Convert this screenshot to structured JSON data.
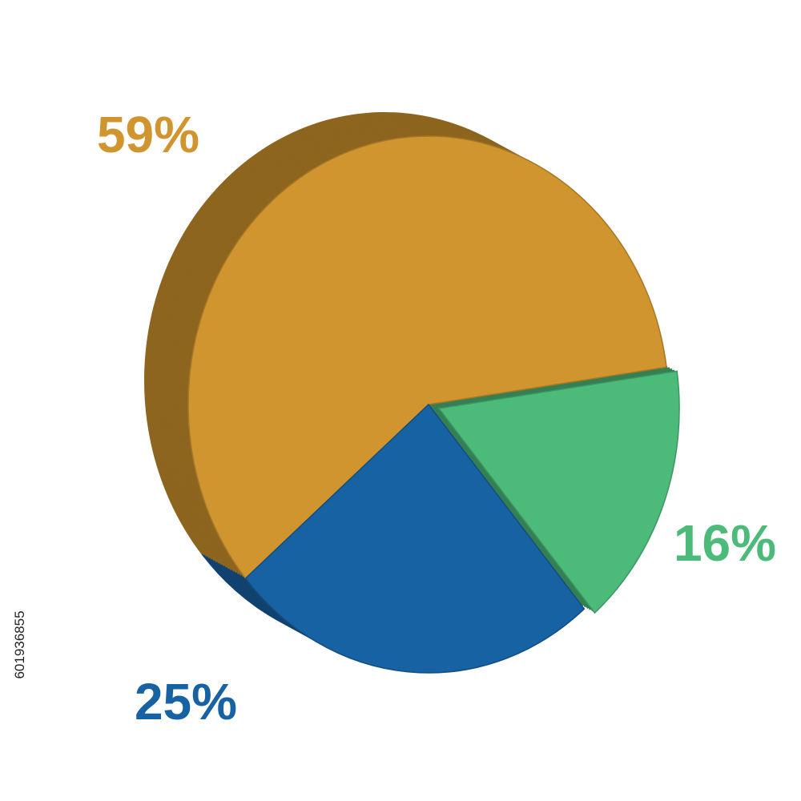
{
  "chart_data": {
    "type": "pie",
    "values": [
      59,
      25,
      16
    ],
    "value_labels": [
      "59%",
      "25%",
      "16%"
    ],
    "colors": [
      "#d0952e",
      "#1762a3",
      "#4cbb7a"
    ],
    "annotation": "601936855"
  }
}
